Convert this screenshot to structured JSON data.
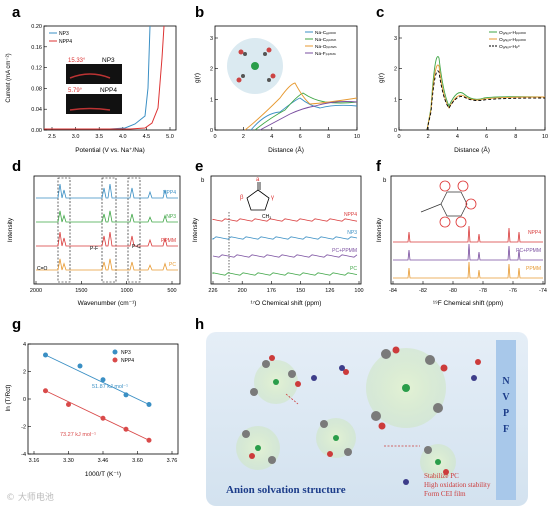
{
  "labels": {
    "a": "a",
    "b": "b",
    "c": "c",
    "d": "d",
    "e": "e",
    "f": "f",
    "g": "g",
    "h": "h"
  },
  "panel_a": {
    "ylabel": "Current (mA cm⁻²)",
    "xlabel": "Potential (V vs. Na⁺/Na)",
    "xticks": [
      "2.5",
      "3.0",
      "3.5",
      "4.0",
      "4.5",
      "5.0"
    ],
    "yticks": [
      "0.00",
      "0.04",
      "0.08",
      "0.12",
      "0.16",
      "0.20"
    ],
    "legend": [
      "NP3",
      "NPP4"
    ],
    "inset_top_label": "NP3",
    "inset_top_angle": "15.33°",
    "inset_bot_label": "NPP4",
    "inset_bot_angle": "5.79°"
  },
  "panel_b": {
    "ylabel": "g(r)",
    "xlabel": "Distance (Å)",
    "xticks": [
      "0",
      "2",
      "4",
      "6",
      "8",
      "10"
    ],
    "yticks": [
      "0",
      "1",
      "2",
      "3"
    ],
    "legend": [
      "Na-Cₑₚₘₘ",
      "Na-Cₚₚₘₘ",
      "Na-Oₚₚₘₘ",
      "Na-Fₚₚₘₘ"
    ]
  },
  "panel_c": {
    "ylabel": "g(r)",
    "xlabel": "Distance (Å)",
    "xticks": [
      "0",
      "2",
      "4",
      "6",
      "8",
      "10"
    ],
    "yticks": [
      "0",
      "1",
      "2",
      "3"
    ],
    "legend": [
      "Oₐₙᵢₒₙ-Hₚₚₘₘ",
      "Oₐₙᵢₒₙ-Hₚₚₘₘ",
      "Oₐₙᵢₒₙ-Hₚᶜ"
    ]
  },
  "panel_d": {
    "ylabel": "Intensity",
    "xlabel": "Wavenumber (cm⁻¹)",
    "xticks": [
      "2000",
      "1500",
      "1000",
      "500"
    ],
    "traces": [
      "NPP4",
      "NP3",
      "PPMM",
      "PC"
    ],
    "colors": [
      "#3a8fc4",
      "#3fa646",
      "#d93a3a",
      "#e79a32"
    ],
    "annotations": [
      "C=O",
      "P-F",
      "P-C"
    ]
  },
  "panel_e": {
    "ylabel": "Intensity",
    "xlabel": "¹⁷O Chemical shift (ppm)",
    "xticks": [
      "226",
      "200",
      "176",
      "150",
      "126",
      "100"
    ],
    "traces": [
      "NPP4",
      "NP3",
      "PC+PPMM",
      "PC"
    ],
    "colors": [
      "#d93a3a",
      "#3a8fc4",
      "#7a4fa0",
      "#3fa646"
    ],
    "mol_labels": [
      "a",
      "β",
      "γ",
      "CH₃"
    ]
  },
  "panel_f": {
    "ylabel": "Intensity",
    "xlabel": "¹⁹F Chemical shift (ppm)",
    "xticks": [
      "-84",
      "-82",
      "-80",
      "-78",
      "-76",
      "-74"
    ],
    "traces": [
      "NPP4",
      "PC+PPMM",
      "PPMM"
    ],
    "colors": [
      "#d93a3a",
      "#7a4fa0",
      "#e79a32"
    ]
  },
  "panel_g": {
    "ylabel": "ln (T/Rct)",
    "xlabel": "1000/T (K⁻¹)",
    "xticks": [
      "3.16",
      "3.30",
      "3.46",
      "3.60",
      "3.76"
    ],
    "yticks": [
      "-4",
      "-2",
      "0",
      "2",
      "4"
    ],
    "legend": [
      "NP3",
      "NPP4"
    ],
    "ea_top": "51.87 kJ mol⁻¹",
    "ea_bot": "73.27 kJ mol⁻¹"
  },
  "panel_h": {
    "title": "Anion solvation structure",
    "electrode": "N V P F",
    "notes": [
      "Stabilize PC",
      "High oxidation stability",
      "Form  CEI film"
    ]
  },
  "watermark": "© 大师电池",
  "chart_data": [
    {
      "panel": "a",
      "type": "line",
      "x": [
        2.5,
        3.0,
        3.5,
        4.0,
        4.5,
        5.0
      ],
      "series": [
        {
          "name": "NP3",
          "values": [
            0.0,
            0.0,
            0.0,
            0.005,
            0.02,
            0.2
          ]
        },
        {
          "name": "NPP4",
          "values": [
            0.0,
            0.0,
            0.0,
            0.0,
            0.008,
            0.2
          ]
        }
      ]
    },
    {
      "panel": "g",
      "type": "scatter",
      "series": [
        {
          "name": "NP3",
          "x": [
            3.21,
            3.36,
            3.46,
            3.56,
            3.66
          ],
          "y": [
            3.2,
            2.4,
            1.4,
            0.3,
            -0.4
          ]
        },
        {
          "name": "NPP4",
          "x": [
            3.21,
            3.31,
            3.46,
            3.56,
            3.66
          ],
          "y": [
            0.6,
            -0.4,
            -1.4,
            -2.2,
            -3.0
          ]
        }
      ]
    }
  ]
}
